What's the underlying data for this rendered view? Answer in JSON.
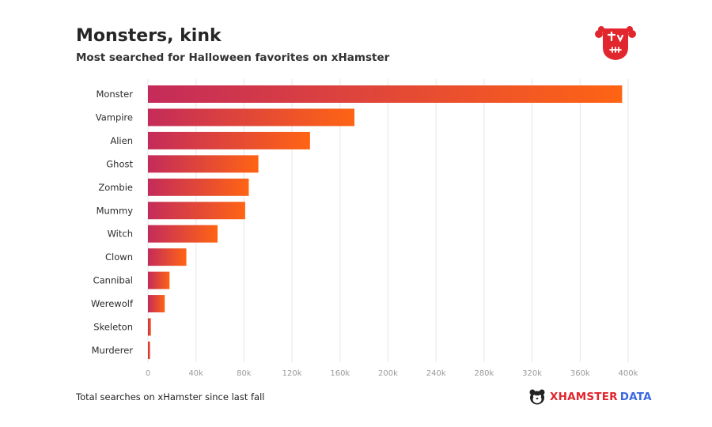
{
  "header": {
    "title": "Monsters, kink",
    "subtitle": "Most searched for Halloween favorites on xHamster"
  },
  "footer": {
    "note": "Total searches on xHamster since last fall",
    "brand_primary": "XHAMSTER",
    "brand_secondary": "DATA"
  },
  "colors": {
    "bar_start": "#c42b5a",
    "bar_end": "#ff6414",
    "logo_red": "#e1262d",
    "brand_blue": "#3a67e0",
    "grid": "#e6e6e6",
    "tick_label": "#9a9a9a"
  },
  "icons": {
    "logo": "monster-face-icon",
    "brand": "hamster-face-icon"
  },
  "chart_data": {
    "type": "bar",
    "orientation": "horizontal",
    "categories": [
      "Monster",
      "Vampire",
      "Alien",
      "Ghost",
      "Zombie",
      "Mummy",
      "Witch",
      "Clown",
      "Cannibal",
      "Werewolf",
      "Skeleton",
      "Murderer"
    ],
    "values": [
      395000,
      172000,
      135000,
      92000,
      84000,
      81000,
      58000,
      32000,
      18000,
      14000,
      2500,
      1800
    ],
    "xlim": [
      0,
      400000
    ],
    "xticks": [
      0,
      40000,
      80000,
      120000,
      160000,
      200000,
      240000,
      280000,
      320000,
      360000,
      400000
    ],
    "xtick_labels": [
      "0",
      "40k",
      "80k",
      "120k",
      "160k",
      "200k",
      "240k",
      "280k",
      "320k",
      "360k",
      "400k"
    ],
    "grid": true,
    "legend": "none"
  }
}
